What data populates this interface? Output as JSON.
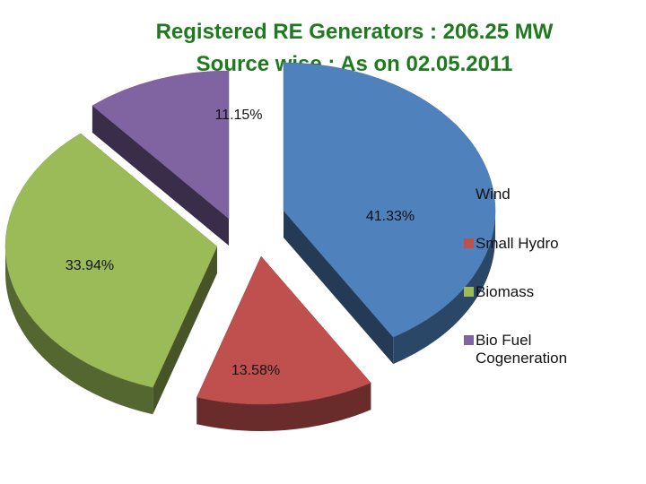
{
  "title_line1": "Registered RE Generators : 206.25 MW",
  "title_line2": "Source wise : As on 02.05.2011",
  "colors": {
    "title": "#1f7a1f",
    "wind": "#4f81bd",
    "small_hydro": "#c0504d",
    "biomass": "#9bbb59",
    "bio_fuel": "#8064a2"
  },
  "chart_data": {
    "type": "pie",
    "style": "3d-exploded",
    "categories": [
      "Wind",
      "Small Hydro",
      "Biomass",
      "Bio Fuel Cogeneration"
    ],
    "values": [
      41.33,
      13.58,
      33.94,
      11.15
    ],
    "labels": [
      "41.33%",
      "13.58%",
      "33.94%",
      "11.15%"
    ],
    "legend_position": "right"
  }
}
